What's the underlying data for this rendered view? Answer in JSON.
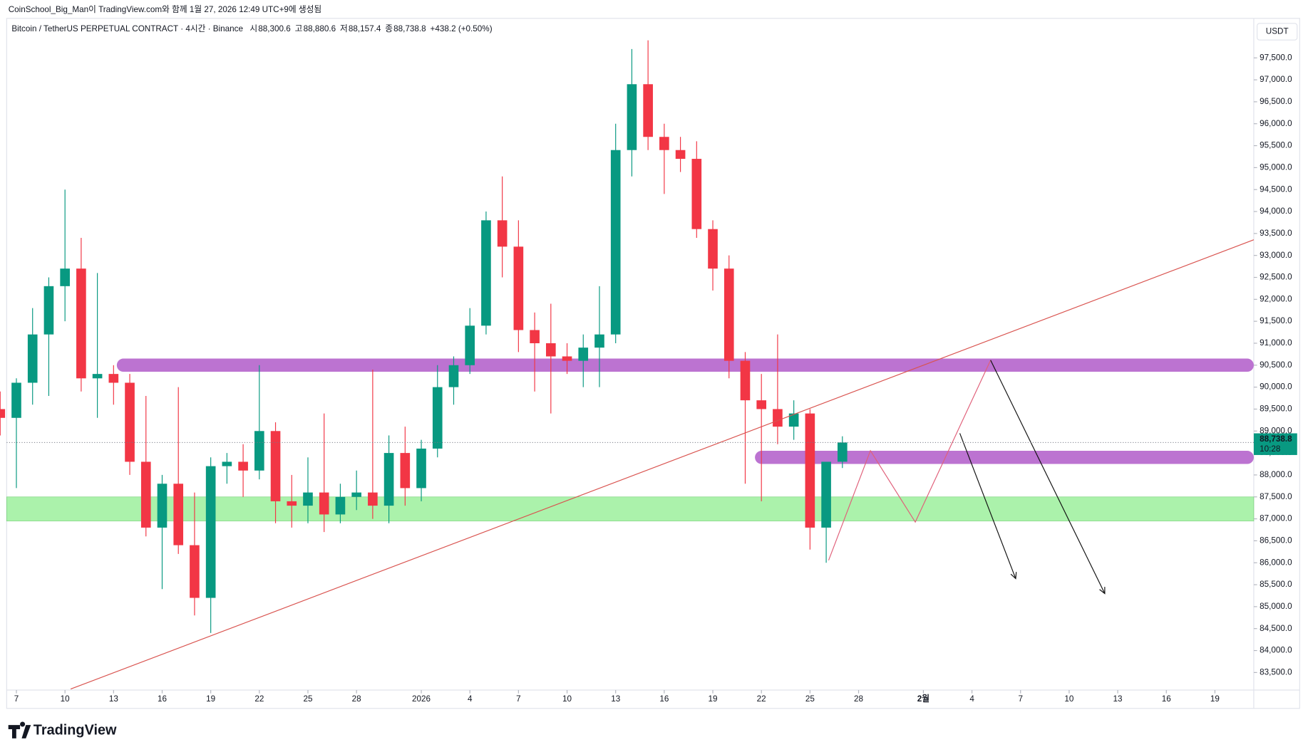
{
  "chart_data": {
    "type": "candlestick",
    "header": "CoinSchool_Big_Man이 TradingView.com와 함께 1월 27, 2026 12:49 UTC+9에 생성됨",
    "title": "Bitcoin / TetherUS PERPETUAL CONTRACT · 4시간 · Binance",
    "legend": [
      {
        "label": "시",
        "value": "88,300.6"
      },
      {
        "label": "고",
        "value": "88,880.6"
      },
      {
        "label": "저",
        "value": "88,157.4"
      },
      {
        "label": "종",
        "value": "88,738.8"
      }
    ],
    "change": "+438.2 (+0.50%)",
    "currency": "USDT",
    "last_price_label": "88,738.8",
    "countdown": "10:28",
    "brand": "TradingView",
    "up_color": "#089981",
    "down_color": "#f23645",
    "x": [
      -1,
      0,
      1,
      2,
      3,
      4,
      5,
      6,
      7,
      8,
      9,
      10,
      11,
      12,
      13,
      14,
      15,
      16,
      17,
      18,
      19,
      20,
      21,
      22,
      23,
      24,
      25,
      26,
      27,
      28,
      29,
      30,
      31,
      32,
      33,
      34,
      35,
      36,
      37,
      38,
      39,
      40,
      41,
      42,
      43,
      44,
      45,
      46,
      47,
      48,
      49,
      50,
      51
    ],
    "open": [
      89500,
      89300,
      90100,
      91200,
      92300,
      92700,
      90200,
      90300,
      90100,
      88300,
      86800,
      87800,
      86400,
      85200,
      88200,
      88300,
      88100,
      89000,
      87400,
      87300,
      87600,
      87100,
      87500,
      87600,
      87300,
      88500,
      87700,
      88600,
      90000,
      90500,
      91400,
      93800,
      93200,
      91300,
      91000,
      90700,
      90600,
      90900,
      91200,
      95400,
      96900,
      95700,
      95400,
      95200,
      93600,
      92700,
      90600,
      89700,
      89500,
      89100,
      89400,
      86800,
      88300.6
    ],
    "high": [
      89900,
      90200,
      91800,
      92500,
      94500,
      93400,
      92600,
      90500,
      90300,
      89800,
      88000,
      90000,
      87600,
      88400,
      88500,
      88700,
      90500,
      89200,
      88000,
      88400,
      89400,
      87800,
      88100,
      90400,
      88900,
      89100,
      88800,
      90500,
      90700,
      91800,
      94000,
      94800,
      93800,
      91700,
      91900,
      91000,
      91200,
      92300,
      96000,
      97700,
      97900,
      96000,
      95700,
      95600,
      93800,
      93000,
      90800,
      90300,
      91200,
      89700,
      89500,
      88200,
      88880.6
    ],
    "low": [
      88900,
      87700,
      89600,
      89800,
      91500,
      89900,
      89300,
      89600,
      88000,
      86600,
      85400,
      86200,
      84800,
      84400,
      87800,
      87500,
      87900,
      86900,
      86800,
      86900,
      86700,
      86900,
      87200,
      87000,
      86900,
      87300,
      87400,
      88400,
      89600,
      90300,
      91200,
      92500,
      90800,
      89900,
      89400,
      90300,
      90000,
      90000,
      91000,
      94800,
      95400,
      94400,
      94900,
      93400,
      92200,
      90200,
      87800,
      87400,
      88700,
      88800,
      86300,
      86000,
      88157.4
    ],
    "close": [
      89300,
      90100,
      91200,
      92300,
      92700,
      90200,
      90300,
      90100,
      88300,
      86800,
      87800,
      86400,
      85200,
      88200,
      88300,
      88100,
      89000,
      87400,
      87300,
      87600,
      87100,
      87500,
      87600,
      87300,
      88500,
      87700,
      88600,
      90000,
      90500,
      91400,
      93800,
      93200,
      91300,
      91000,
      90700,
      90600,
      90900,
      91200,
      95400,
      96900,
      95700,
      95400,
      95200,
      93600,
      92700,
      90600,
      89700,
      89500,
      89100,
      89400,
      86800,
      88300,
      88738.8
    ],
    "xlim": [
      -0.6,
      76.4
    ],
    "xticks": [
      {
        "value": 0,
        "label": "7"
      },
      {
        "value": 3,
        "label": "10"
      },
      {
        "value": 6,
        "label": "13"
      },
      {
        "value": 9,
        "label": "16"
      },
      {
        "value": 12,
        "label": "19"
      },
      {
        "value": 15,
        "label": "22"
      },
      {
        "value": 18,
        "label": "25"
      },
      {
        "value": 21,
        "label": "28"
      },
      {
        "value": 25,
        "label": "2026"
      },
      {
        "value": 28,
        "label": "4"
      },
      {
        "value": 31,
        "label": "7"
      },
      {
        "value": 34,
        "label": "10"
      },
      {
        "value": 37,
        "label": "13"
      },
      {
        "value": 40,
        "label": "16"
      },
      {
        "value": 43,
        "label": "19"
      },
      {
        "value": 46,
        "label": "22"
      },
      {
        "value": 49,
        "label": "25"
      },
      {
        "value": 52,
        "label": "28"
      },
      {
        "value": 56,
        "label": "2월"
      },
      {
        "value": 59,
        "label": "4"
      },
      {
        "value": 62,
        "label": "7"
      },
      {
        "value": 65,
        "label": "10"
      },
      {
        "value": 68,
        "label": "13"
      },
      {
        "value": 71,
        "label": "16"
      },
      {
        "value": 74,
        "label": "19"
      }
    ],
    "ylim": [
      83100,
      98400
    ],
    "yticks": [
      {
        "value": 83500,
        "label": "83,500.0"
      },
      {
        "value": 84000,
        "label": "84,000.0"
      },
      {
        "value": 84500,
        "label": "84,500.0"
      },
      {
        "value": 85000,
        "label": "85,000.0"
      },
      {
        "value": 85500,
        "label": "85,500.0"
      },
      {
        "value": 86000,
        "label": "86,000.0"
      },
      {
        "value": 86500,
        "label": "86,500.0"
      },
      {
        "value": 87000,
        "label": "87,000.0"
      },
      {
        "value": 87500,
        "label": "87,500.0"
      },
      {
        "value": 88000,
        "label": "88,000.0"
      },
      {
        "value": 88500,
        "label": "88,500.0"
      },
      {
        "value": 89000,
        "label": "89,000.0"
      },
      {
        "value": 89500,
        "label": "89,500.0"
      },
      {
        "value": 90000,
        "label": "90,000.0"
      },
      {
        "value": 90500,
        "label": "90,500.0"
      },
      {
        "value": 91000,
        "label": "91,000.0"
      },
      {
        "value": 91500,
        "label": "91,500.0"
      },
      {
        "value": 92000,
        "label": "92,000.0"
      },
      {
        "value": 92500,
        "label": "92,500.0"
      },
      {
        "value": 93000,
        "label": "93,000.0"
      },
      {
        "value": 93500,
        "label": "93,500.0"
      },
      {
        "value": 94000,
        "label": "94,000.0"
      },
      {
        "value": 94500,
        "label": "94,500.0"
      },
      {
        "value": 95000,
        "label": "95,000.0"
      },
      {
        "value": 95500,
        "label": "95,500.0"
      },
      {
        "value": 96000,
        "label": "96,000.0"
      },
      {
        "value": 96500,
        "label": "96,500.0"
      },
      {
        "value": 97000,
        "label": "97,000.0"
      },
      {
        "value": 97500,
        "label": "97,500.0"
      }
    ],
    "zones": [
      {
        "color": "#b05bc9",
        "start": 6.2,
        "low": 90350,
        "high": 90650
      },
      {
        "color": "#b05bc9",
        "start": 45.6,
        "low": 88250,
        "high": 88550
      },
      {
        "color": "#90ee90",
        "start": -0.6,
        "low": 86950,
        "high": 87500
      }
    ],
    "lines": [
      {
        "color": "#d9534f",
        "x": [
          3.35,
          76.4
        ],
        "y": [
          83123,
          93357
        ]
      },
      {
        "color": "#e0607a",
        "x": [
          50.15,
          52.73,
          55.5,
          60.15
        ],
        "y": [
          86055,
          88553,
          86926,
          90614
        ]
      }
    ],
    "arrows": [
      {
        "color": "#111111",
        "x": [
          58.25,
          61.7
        ],
        "y": [
          88949,
          85638
        ]
      },
      {
        "color": "#111111",
        "x": [
          60.15,
          67.2
        ],
        "y": [
          90614,
          85298
        ]
      }
    ]
  }
}
